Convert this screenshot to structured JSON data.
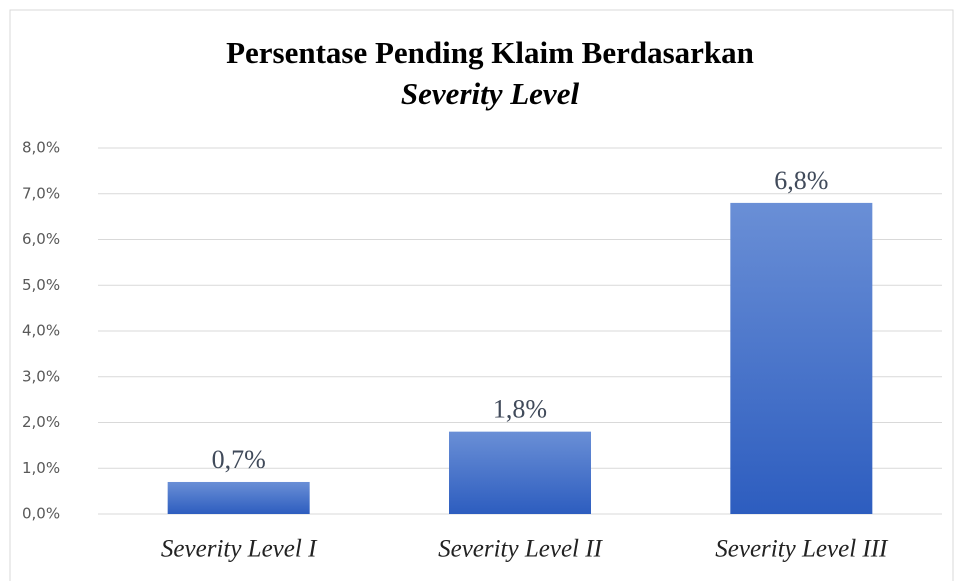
{
  "chart_data": {
    "type": "bar",
    "title": [
      "Persentase Pending Klaim Berdasarkan",
      "Severity Level"
    ],
    "categories": [
      "Severity Level I",
      "Severity Level II",
      "Severity Level III"
    ],
    "values": [
      0.7,
      1.8,
      6.8
    ],
    "value_labels": [
      "0,7%",
      "1,8%",
      "6,8%"
    ],
    "color": "#4472c4",
    "ylim": [
      0,
      8
    ],
    "yticks": [
      {
        "value": 0,
        "label": "0,0%"
      },
      {
        "value": 1,
        "label": "1,0%"
      },
      {
        "value": 2,
        "label": "2,0%"
      },
      {
        "value": 3,
        "label": "3,0%"
      },
      {
        "value": 4,
        "label": "4,0%"
      },
      {
        "value": 5,
        "label": "5,0%"
      },
      {
        "value": 6,
        "label": "6,0%"
      },
      {
        "value": 7,
        "label": "7,0%"
      },
      {
        "value": 8,
        "label": "8,0%"
      }
    ],
    "grid": true
  }
}
